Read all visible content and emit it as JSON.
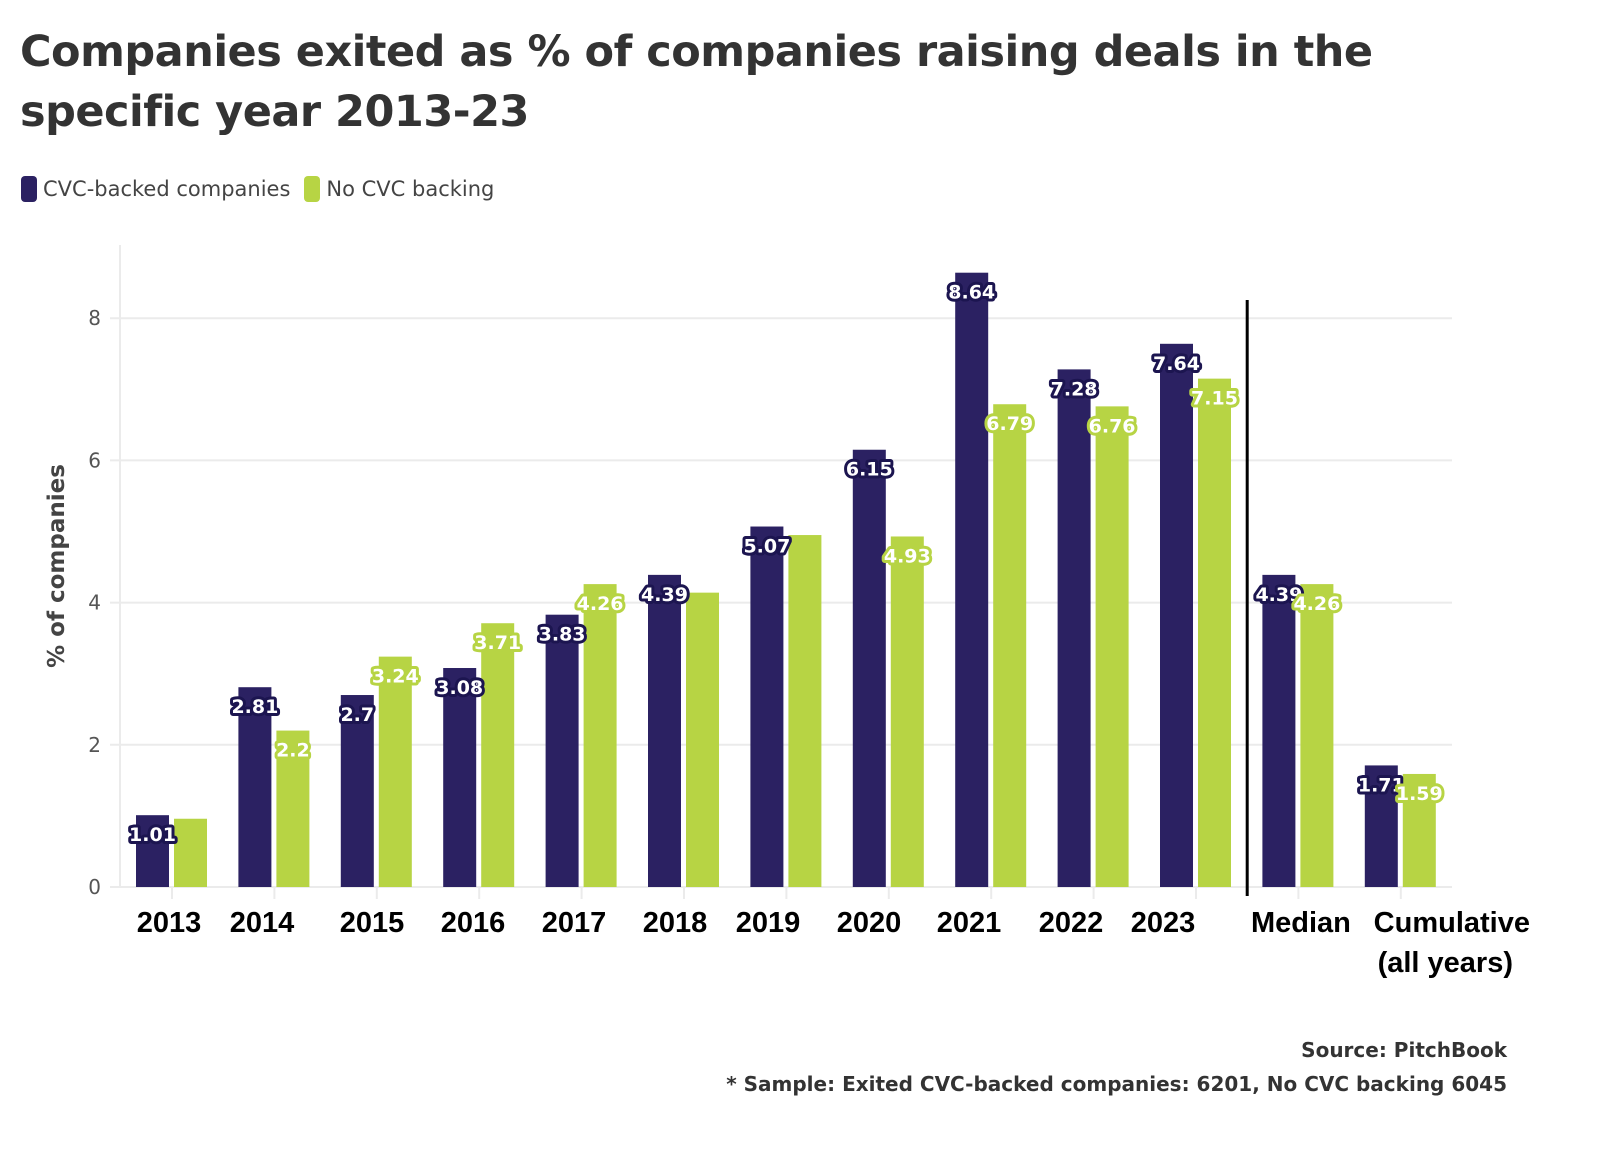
{
  "chart_data": {
    "type": "bar",
    "title": "Companies exited as % of companies raising deals in the specific year 2013-23",
    "xlabel": "",
    "ylabel": "% of companies",
    "ylim": [
      0,
      8.9
    ],
    "yticks": [
      0,
      2,
      4,
      6,
      8
    ],
    "grid": true,
    "legend_position": "top-left",
    "categories": [
      "2013",
      "2014",
      "2015",
      "2016",
      "2017",
      "2018",
      "2019",
      "2020",
      "2021",
      "2022",
      "2023",
      "Median",
      "Cumulative"
    ],
    "category_label_lines": [
      [
        "2013"
      ],
      [
        "2014"
      ],
      [
        "2015"
      ],
      [
        "2016"
      ],
      [
        "2017"
      ],
      [
        "2018"
      ],
      [
        "2019"
      ],
      [
        "2020"
      ],
      [
        "2021"
      ],
      [
        "2022"
      ],
      [
        "2023"
      ],
      [
        "Median"
      ],
      [
        "Cumulative",
        "(all years)"
      ]
    ],
    "separator_after_category": "2023",
    "series": [
      {
        "name": "CVC-backed companies",
        "color": "#2b2162",
        "values": [
          1.01,
          2.81,
          2.7,
          3.08,
          3.83,
          4.39,
          5.07,
          6.15,
          8.64,
          7.28,
          7.64,
          4.39,
          1.71
        ],
        "labels": [
          "1.01",
          "2.81",
          "2.7",
          "3.08",
          "3.83",
          "4.39",
          "5.07",
          "6.15",
          "8.64",
          "7.28",
          "7.64",
          "4.39",
          "1.71"
        ]
      },
      {
        "name": "No CVC backing",
        "color": "#b7d444",
        "values": [
          0.96,
          2.2,
          3.24,
          3.71,
          4.26,
          4.14,
          4.95,
          4.93,
          6.79,
          6.76,
          7.15,
          4.26,
          1.59
        ],
        "labels": [
          null,
          "2.2",
          "3.24",
          "3.71",
          "4.26",
          null,
          null,
          "4.93",
          "6.79",
          "6.76",
          "7.15",
          "4.26",
          "1.59"
        ]
      }
    ]
  },
  "legend": [
    {
      "label": "CVC-backed companies",
      "color": "#2b2162"
    },
    {
      "label": "No CVC backing",
      "color": "#b7d444"
    }
  ],
  "footer": {
    "source": "Source: PitchBook",
    "note": "* Sample: Exited CVC-backed companies: 6201, No CVC backing 6045"
  }
}
